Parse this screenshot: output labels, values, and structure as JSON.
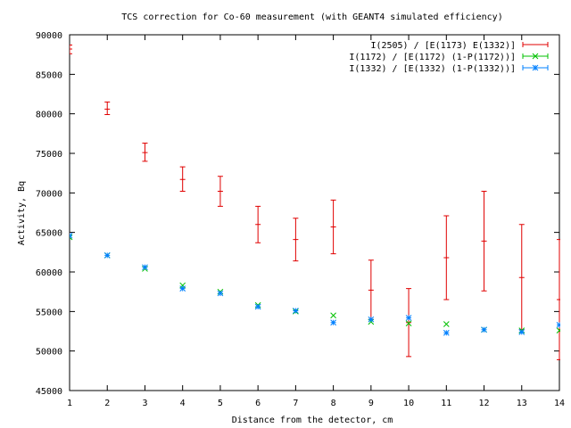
{
  "chart_data": {
    "type": "scatter",
    "title": "TCS correction for Co-60 measurement (with GEANT4 simulated efficiency)",
    "xlabel": "Distance from the detector, cm",
    "ylabel": "Activity, Bq",
    "xlim": [
      1,
      14
    ],
    "ylim": [
      45000,
      90000
    ],
    "xticks": [
      1,
      2,
      3,
      4,
      5,
      6,
      7,
      8,
      9,
      10,
      11,
      12,
      13,
      14
    ],
    "yticks": [
      45000,
      50000,
      55000,
      60000,
      65000,
      70000,
      75000,
      80000,
      85000,
      90000
    ],
    "grid": false,
    "legend_position": "top-right",
    "series": [
      {
        "name": "I(2505) / [E(1173) E(1332)]",
        "color": "#e00000",
        "marker": "plus-errorbar",
        "x": [
          1,
          2,
          3,
          4,
          5,
          6,
          7,
          8,
          9,
          10,
          11,
          12,
          13,
          14
        ],
        "y": [
          88200,
          80600,
          75100,
          71700,
          70200,
          66000,
          64100,
          65700,
          57700,
          53600,
          61800,
          63900,
          59300,
          56500
        ],
        "y_low": [
          87600,
          79900,
          74000,
          70200,
          68300,
          63700,
          61400,
          62300,
          54000,
          49300,
          56500,
          57600,
          52700,
          48900
        ],
        "y_high": [
          88700,
          81500,
          76300,
          73300,
          72100,
          68300,
          66800,
          69100,
          61500,
          57900,
          67100,
          70200,
          66000,
          64100
        ]
      },
      {
        "name": "I(1172) / [E(1172) (1-P(1172))]",
        "color": "#00c000",
        "marker": "cross",
        "x": [
          1,
          2,
          3,
          4,
          5,
          6,
          7,
          8,
          9,
          10,
          11,
          12,
          13,
          14
        ],
        "y": [
          64400,
          62100,
          60400,
          58300,
          57500,
          55800,
          55000,
          54500,
          53700,
          53500,
          53400,
          52700,
          52600,
          52600
        ]
      },
      {
        "name": "I(1332) / [E(1332) (1-P(1332))]",
        "color": "#0080ff",
        "marker": "star",
        "x": [
          1,
          2,
          3,
          4,
          5,
          6,
          7,
          8,
          9,
          10,
          11,
          12,
          13,
          14
        ],
        "y": [
          64600,
          62100,
          60600,
          57900,
          57300,
          55600,
          55100,
          53600,
          54000,
          54200,
          52300,
          52700,
          52400,
          53300
        ]
      }
    ]
  }
}
